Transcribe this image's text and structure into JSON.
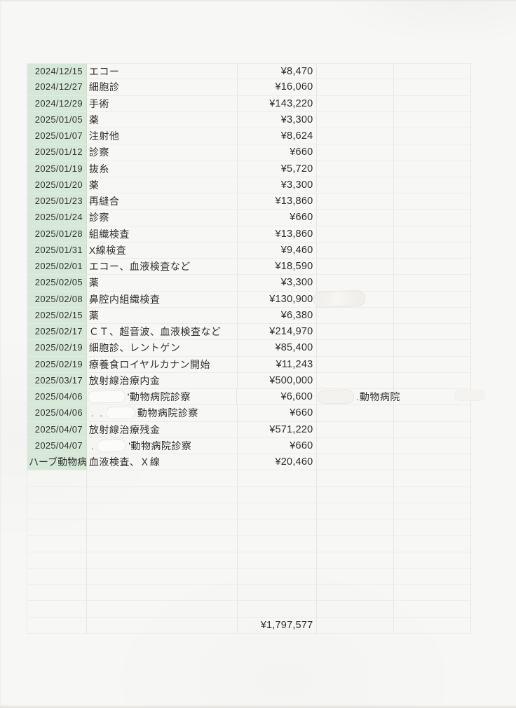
{
  "table": {
    "rows": [
      {
        "date": "2024/12/15",
        "desc": "エコー",
        "amount": "¥8,470"
      },
      {
        "date": "2024/12/27",
        "desc": "細胞診",
        "amount": "¥16,060"
      },
      {
        "date": "2024/12/29",
        "desc": "手術",
        "amount": "¥143,220"
      },
      {
        "date": "2025/01/05",
        "desc": "薬",
        "amount": "¥3,300"
      },
      {
        "date": "2025/01/07",
        "desc": "注射他",
        "amount": "¥8,624"
      },
      {
        "date": "2025/01/12",
        "desc": "診察",
        "amount": "¥660"
      },
      {
        "date": "2025/01/19",
        "desc": "抜糸",
        "amount": "¥5,720"
      },
      {
        "date": "2025/01/20",
        "desc": "薬",
        "amount": "¥3,300"
      },
      {
        "date": "2025/01/23",
        "desc": "再縫合",
        "amount": "¥13,860"
      },
      {
        "date": "2025/01/24",
        "desc": "診察",
        "amount": "¥660"
      },
      {
        "date": "2025/01/28",
        "desc": "組織検査",
        "amount": "¥13,860"
      },
      {
        "date": "2025/01/31",
        "desc": "X線検査",
        "amount": "¥9,460"
      },
      {
        "date": "2025/02/01",
        "desc": "エコー、血液検査など",
        "amount": "¥18,590"
      },
      {
        "date": "2025/02/05",
        "desc": "薬",
        "amount": "¥3,300"
      },
      {
        "date": "2025/02/08",
        "desc": "鼻腔内組織検査",
        "amount": "¥130,900",
        "note_blob": "lg"
      },
      {
        "date": "2025/02/15",
        "desc": "薬",
        "amount": "¥6,380"
      },
      {
        "date": "2025/02/17",
        "desc": "ＣＴ、超音波、血液検査など",
        "amount": "¥214,970"
      },
      {
        "date": "2025/02/19",
        "desc": "細胞診、レントゲン",
        "amount": "¥85,400"
      },
      {
        "date": "2025/02/19",
        "desc": "療養食ロイヤルカナン開始",
        "amount": "¥11,243"
      },
      {
        "date": "2025/03/17",
        "desc": "放射線治療内金",
        "amount": "¥500,000"
      },
      {
        "date": "2025/04/06",
        "desc": "'動物病院診察",
        "desc_blob": "lg",
        "amount": "¥6,600",
        "note": "動物病院",
        "note_prefix": ".",
        "note_blob": "sm",
        "extra_blob": true
      },
      {
        "date": "2025/04/06",
        "desc": "動物病院診察",
        "desc_prefix": ". .",
        "desc_blob": "sm",
        "amount": "¥660"
      },
      {
        "date": "2025/04/07",
        "desc": "放射線治療残金",
        "amount": "¥571,220"
      },
      {
        "date": "2025/04/07",
        "desc": "'動物病院診察",
        "desc_prefix": ".",
        "desc_blob": "sm",
        "amount": "¥660"
      },
      {
        "date": "ハーブ動物病",
        "date_text_left": true,
        "desc": "血液検査、Ｘ線",
        "amount": "¥20,460"
      }
    ],
    "blank_rows": 9,
    "total_amount": "¥1,797,577"
  },
  "colors": {
    "date_highlight": "#d6e8d7",
    "paper": "#f7f7f5",
    "grid_line": "#e8e6e2",
    "ink": "#2d2d2d"
  }
}
